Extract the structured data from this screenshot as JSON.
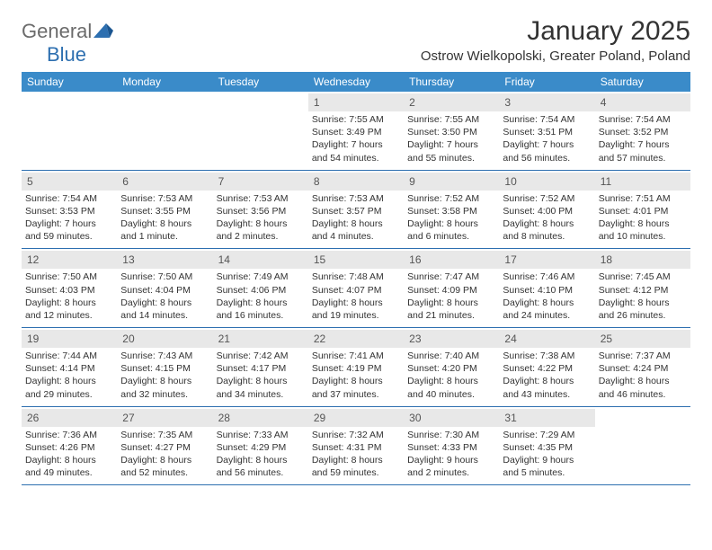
{
  "logo": {
    "general": "General",
    "blue": "Blue"
  },
  "title": "January 2025",
  "location": "Ostrow Wielkopolski, Greater Poland, Poland",
  "colors": {
    "header_bg": "#3a8bc9",
    "header_text": "#ffffff",
    "daynum_bg": "#e8e8e8",
    "border": "#2d6fb0",
    "logo_gray": "#6b6b6b",
    "logo_blue": "#2d6fb0"
  },
  "day_headers": [
    "Sunday",
    "Monday",
    "Tuesday",
    "Wednesday",
    "Thursday",
    "Friday",
    "Saturday"
  ],
  "weeks": [
    [
      null,
      null,
      null,
      {
        "n": "1",
        "sr": "Sunrise: 7:55 AM",
        "ss": "Sunset: 3:49 PM",
        "dl1": "Daylight: 7 hours",
        "dl2": "and 54 minutes."
      },
      {
        "n": "2",
        "sr": "Sunrise: 7:55 AM",
        "ss": "Sunset: 3:50 PM",
        "dl1": "Daylight: 7 hours",
        "dl2": "and 55 minutes."
      },
      {
        "n": "3",
        "sr": "Sunrise: 7:54 AM",
        "ss": "Sunset: 3:51 PM",
        "dl1": "Daylight: 7 hours",
        "dl2": "and 56 minutes."
      },
      {
        "n": "4",
        "sr": "Sunrise: 7:54 AM",
        "ss": "Sunset: 3:52 PM",
        "dl1": "Daylight: 7 hours",
        "dl2": "and 57 minutes."
      }
    ],
    [
      {
        "n": "5",
        "sr": "Sunrise: 7:54 AM",
        "ss": "Sunset: 3:53 PM",
        "dl1": "Daylight: 7 hours",
        "dl2": "and 59 minutes."
      },
      {
        "n": "6",
        "sr": "Sunrise: 7:53 AM",
        "ss": "Sunset: 3:55 PM",
        "dl1": "Daylight: 8 hours",
        "dl2": "and 1 minute."
      },
      {
        "n": "7",
        "sr": "Sunrise: 7:53 AM",
        "ss": "Sunset: 3:56 PM",
        "dl1": "Daylight: 8 hours",
        "dl2": "and 2 minutes."
      },
      {
        "n": "8",
        "sr": "Sunrise: 7:53 AM",
        "ss": "Sunset: 3:57 PM",
        "dl1": "Daylight: 8 hours",
        "dl2": "and 4 minutes."
      },
      {
        "n": "9",
        "sr": "Sunrise: 7:52 AM",
        "ss": "Sunset: 3:58 PM",
        "dl1": "Daylight: 8 hours",
        "dl2": "and 6 minutes."
      },
      {
        "n": "10",
        "sr": "Sunrise: 7:52 AM",
        "ss": "Sunset: 4:00 PM",
        "dl1": "Daylight: 8 hours",
        "dl2": "and 8 minutes."
      },
      {
        "n": "11",
        "sr": "Sunrise: 7:51 AM",
        "ss": "Sunset: 4:01 PM",
        "dl1": "Daylight: 8 hours",
        "dl2": "and 10 minutes."
      }
    ],
    [
      {
        "n": "12",
        "sr": "Sunrise: 7:50 AM",
        "ss": "Sunset: 4:03 PM",
        "dl1": "Daylight: 8 hours",
        "dl2": "and 12 minutes."
      },
      {
        "n": "13",
        "sr": "Sunrise: 7:50 AM",
        "ss": "Sunset: 4:04 PM",
        "dl1": "Daylight: 8 hours",
        "dl2": "and 14 minutes."
      },
      {
        "n": "14",
        "sr": "Sunrise: 7:49 AM",
        "ss": "Sunset: 4:06 PM",
        "dl1": "Daylight: 8 hours",
        "dl2": "and 16 minutes."
      },
      {
        "n": "15",
        "sr": "Sunrise: 7:48 AM",
        "ss": "Sunset: 4:07 PM",
        "dl1": "Daylight: 8 hours",
        "dl2": "and 19 minutes."
      },
      {
        "n": "16",
        "sr": "Sunrise: 7:47 AM",
        "ss": "Sunset: 4:09 PM",
        "dl1": "Daylight: 8 hours",
        "dl2": "and 21 minutes."
      },
      {
        "n": "17",
        "sr": "Sunrise: 7:46 AM",
        "ss": "Sunset: 4:10 PM",
        "dl1": "Daylight: 8 hours",
        "dl2": "and 24 minutes."
      },
      {
        "n": "18",
        "sr": "Sunrise: 7:45 AM",
        "ss": "Sunset: 4:12 PM",
        "dl1": "Daylight: 8 hours",
        "dl2": "and 26 minutes."
      }
    ],
    [
      {
        "n": "19",
        "sr": "Sunrise: 7:44 AM",
        "ss": "Sunset: 4:14 PM",
        "dl1": "Daylight: 8 hours",
        "dl2": "and 29 minutes."
      },
      {
        "n": "20",
        "sr": "Sunrise: 7:43 AM",
        "ss": "Sunset: 4:15 PM",
        "dl1": "Daylight: 8 hours",
        "dl2": "and 32 minutes."
      },
      {
        "n": "21",
        "sr": "Sunrise: 7:42 AM",
        "ss": "Sunset: 4:17 PM",
        "dl1": "Daylight: 8 hours",
        "dl2": "and 34 minutes."
      },
      {
        "n": "22",
        "sr": "Sunrise: 7:41 AM",
        "ss": "Sunset: 4:19 PM",
        "dl1": "Daylight: 8 hours",
        "dl2": "and 37 minutes."
      },
      {
        "n": "23",
        "sr": "Sunrise: 7:40 AM",
        "ss": "Sunset: 4:20 PM",
        "dl1": "Daylight: 8 hours",
        "dl2": "and 40 minutes."
      },
      {
        "n": "24",
        "sr": "Sunrise: 7:38 AM",
        "ss": "Sunset: 4:22 PM",
        "dl1": "Daylight: 8 hours",
        "dl2": "and 43 minutes."
      },
      {
        "n": "25",
        "sr": "Sunrise: 7:37 AM",
        "ss": "Sunset: 4:24 PM",
        "dl1": "Daylight: 8 hours",
        "dl2": "and 46 minutes."
      }
    ],
    [
      {
        "n": "26",
        "sr": "Sunrise: 7:36 AM",
        "ss": "Sunset: 4:26 PM",
        "dl1": "Daylight: 8 hours",
        "dl2": "and 49 minutes."
      },
      {
        "n": "27",
        "sr": "Sunrise: 7:35 AM",
        "ss": "Sunset: 4:27 PM",
        "dl1": "Daylight: 8 hours",
        "dl2": "and 52 minutes."
      },
      {
        "n": "28",
        "sr": "Sunrise: 7:33 AM",
        "ss": "Sunset: 4:29 PM",
        "dl1": "Daylight: 8 hours",
        "dl2": "and 56 minutes."
      },
      {
        "n": "29",
        "sr": "Sunrise: 7:32 AM",
        "ss": "Sunset: 4:31 PM",
        "dl1": "Daylight: 8 hours",
        "dl2": "and 59 minutes."
      },
      {
        "n": "30",
        "sr": "Sunrise: 7:30 AM",
        "ss": "Sunset: 4:33 PM",
        "dl1": "Daylight: 9 hours",
        "dl2": "and 2 minutes."
      },
      {
        "n": "31",
        "sr": "Sunrise: 7:29 AM",
        "ss": "Sunset: 4:35 PM",
        "dl1": "Daylight: 9 hours",
        "dl2": "and 5 minutes."
      },
      null
    ]
  ]
}
